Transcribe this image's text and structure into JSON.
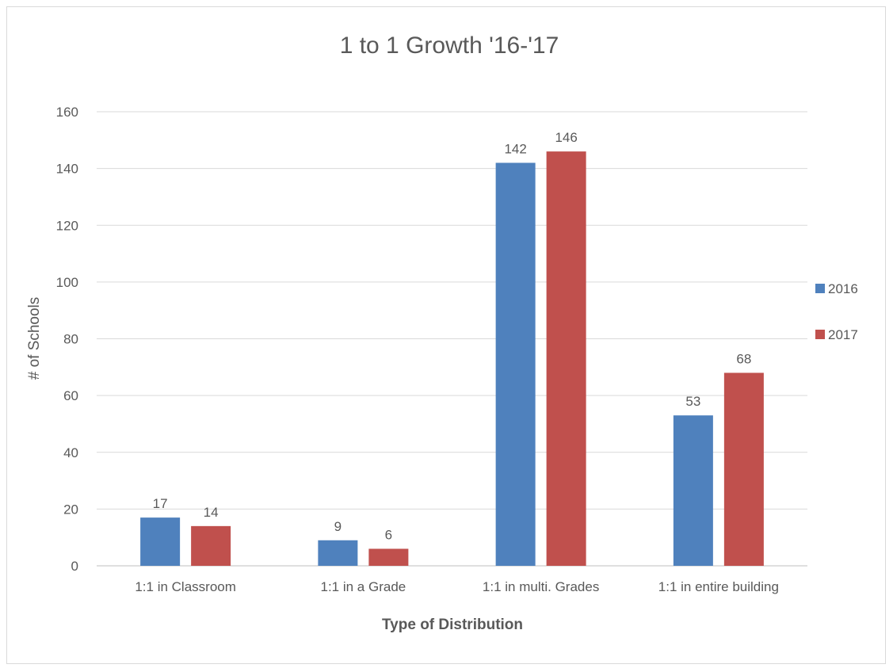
{
  "chart_data": {
    "type": "bar",
    "title": "1 to 1 Growth '16-'17",
    "xlabel": "Type of Distribution",
    "ylabel": "# of Schools",
    "categories": [
      "1:1 in Classroom",
      "1:1 in a Grade",
      "1:1 in multi. Grades",
      "1:1 in entire building"
    ],
    "series": [
      {
        "name": "2016",
        "values": [
          17,
          9,
          142,
          53
        ],
        "color": "#4f81bd"
      },
      {
        "name": "2017",
        "values": [
          14,
          6,
          146,
          68
        ],
        "color": "#c0504d"
      }
    ],
    "ylim": [
      0,
      160
    ],
    "yticks": [
      0,
      20,
      40,
      60,
      80,
      100,
      120,
      140,
      160
    ],
    "grid": true,
    "legend_position": "right",
    "data_labels": true
  }
}
